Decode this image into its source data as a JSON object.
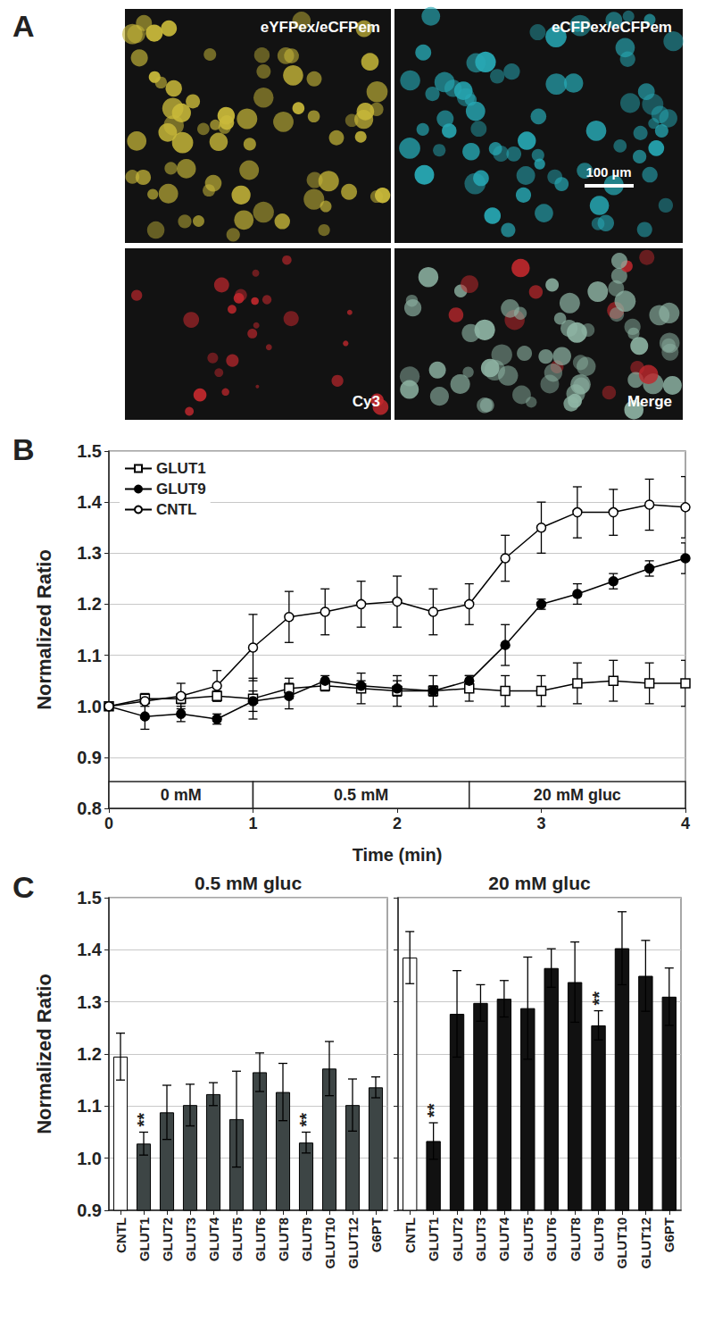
{
  "figure": {
    "panel_labels": [
      "A",
      "B",
      "C"
    ],
    "images": [
      {
        "label": "eYFPex/eCFPem",
        "color": "#c9b93a"
      },
      {
        "label": "eCFPex/eCFPem",
        "color": "#27a9b5"
      },
      {
        "label": "Cy3",
        "color": "#c0282d"
      },
      {
        "label": "Merge",
        "color": "#8fb5a5"
      }
    ],
    "scale_bar": "100 µm"
  },
  "chart_data": [
    {
      "type": "line",
      "x": [
        0,
        0.25,
        0.5,
        0.75,
        1,
        1.25,
        1.5,
        1.75,
        2,
        2.25,
        2.5,
        2.75,
        3,
        3.25,
        3.5,
        3.75,
        4
      ],
      "xlabel": "Time (min)",
      "ylabel": "Normalized Ratio",
      "xlim": [
        0,
        4
      ],
      "xticks": [
        0,
        1,
        2,
        3,
        4
      ],
      "ylim": [
        0.8,
        1.5
      ],
      "yticks": [
        0.8,
        0.9,
        {
          "value": 1,
          "label": "1.0"
        },
        1.1,
        1.2,
        1.3,
        1.4,
        1.5
      ],
      "grid": true,
      "legend": "upper left",
      "series": [
        {
          "name": "GLUT1",
          "color": "#000000",
          "marker": "square-open",
          "values": [
            1.0,
            1.015,
            1.015,
            1.02,
            1.015,
            1.035,
            1.04,
            1.035,
            1.03,
            1.03,
            1.035,
            1.03,
            1.03,
            1.045,
            1.05,
            1.045,
            1.045
          ],
          "errors": [
            0,
            0.01,
            0.01,
            0.01,
            0.04,
            0.02,
            0.01,
            0.03,
            0.03,
            0.03,
            0.025,
            0.03,
            0.03,
            0.04,
            0.04,
            0.04,
            0.045
          ]
        },
        {
          "name": "GLUT9",
          "color": "#000000",
          "marker": "circle-filled",
          "values": [
            1.0,
            0.98,
            0.985,
            0.975,
            1.01,
            1.02,
            1.05,
            1.04,
            1.035,
            1.03,
            1.05,
            1.12,
            1.2,
            1.22,
            1.245,
            1.27,
            1.29
          ],
          "errors": [
            0,
            0.025,
            0.015,
            0.01,
            0.02,
            0.025,
            0.01,
            0.01,
            0.015,
            0.01,
            0.01,
            0.04,
            0.01,
            0.02,
            0.015,
            0.015,
            0.03
          ]
        },
        {
          "name": "CNTL",
          "color": "#000000",
          "marker": "circle-open",
          "values": [
            1.0,
            1.01,
            1.02,
            1.04,
            1.115,
            1.175,
            1.185,
            1.2,
            1.205,
            1.185,
            1.2,
            1.29,
            1.35,
            1.38,
            1.38,
            1.395,
            1.39
          ],
          "errors": [
            0,
            0.01,
            0.025,
            0.03,
            0.065,
            0.05,
            0.045,
            0.045,
            0.05,
            0.045,
            0.04,
            0.045,
            0.05,
            0.05,
            0.045,
            0.05,
            0.06
          ]
        }
      ],
      "conditions": [
        {
          "label": "0 mM",
          "start": 0,
          "end": 1
        },
        {
          "label": "0.5 mM",
          "start": 1,
          "end": 2.5
        },
        {
          "label": "20 mM gluc",
          "start": 2.5,
          "end": 4
        }
      ]
    },
    {
      "type": "bar",
      "title": "0.5 mM gluc",
      "ylabel": "Normalized Ratio",
      "categories": [
        "CNTL",
        "GLUT1",
        "GLUT2",
        "GLUT3",
        "GLUT4",
        "GLUT5",
        "GLUT6",
        "GLUT8",
        "GLUT9",
        "GLUT10",
        "GLUT12",
        "G6PT"
      ],
      "values": [
        1.195,
        1.028,
        1.088,
        1.102,
        1.123,
        1.075,
        1.165,
        1.127,
        1.03,
        1.172,
        1.102,
        1.136
      ],
      "errors": [
        0.045,
        0.022,
        0.052,
        0.04,
        0.022,
        0.092,
        0.037,
        0.055,
        0.02,
        0.052,
        0.05,
        0.02
      ],
      "colors": [
        "#ffffff",
        "#3d4545",
        "#3d4545",
        "#3d4545",
        "#3d4545",
        "#3d4545",
        "#3d4545",
        "#3d4545",
        "#3d4545",
        "#3d4545",
        "#3d4545",
        "#3d4545"
      ],
      "ylim": [
        0.9,
        1.5
      ],
      "yticks": [
        0.9,
        {
          "value": 1,
          "label": "1.0"
        },
        1.1,
        1.2,
        1.3,
        1.4,
        1.5
      ],
      "grid": true,
      "annotations": [
        {
          "category": "GLUT1",
          "text": "**"
        },
        {
          "category": "GLUT9",
          "text": "**"
        }
      ]
    },
    {
      "type": "bar",
      "title": "20 mM gluc",
      "categories": [
        "CNTL",
        "GLUT1",
        "GLUT2",
        "GLUT3",
        "GLUT4",
        "GLUT5",
        "GLUT6",
        "GLUT8",
        "GLUT9",
        "GLUT10",
        "GLUT12",
        "G6PT"
      ],
      "values": [
        1.385,
        1.033,
        1.277,
        1.298,
        1.306,
        1.288,
        1.365,
        1.338,
        1.255,
        1.403,
        1.35,
        1.31
      ],
      "errors": [
        0.05,
        0.035,
        0.083,
        0.035,
        0.035,
        0.098,
        0.037,
        0.077,
        0.028,
        0.07,
        0.068,
        0.055
      ],
      "colors": [
        "#ffffff",
        "#111111",
        "#111111",
        "#111111",
        "#111111",
        "#111111",
        "#111111",
        "#111111",
        "#111111",
        "#111111",
        "#111111",
        "#111111"
      ],
      "ylim": [
        0.9,
        1.5
      ],
      "yticks": [
        0.9,
        {
          "value": 1,
          "label": "1.0"
        },
        1.1,
        1.2,
        1.3,
        1.4,
        1.5
      ],
      "grid": true,
      "tick_labels": "x",
      "annotations": [
        {
          "category": "GLUT1",
          "text": "**"
        },
        {
          "category": "GLUT9",
          "text": "**"
        }
      ]
    }
  ]
}
